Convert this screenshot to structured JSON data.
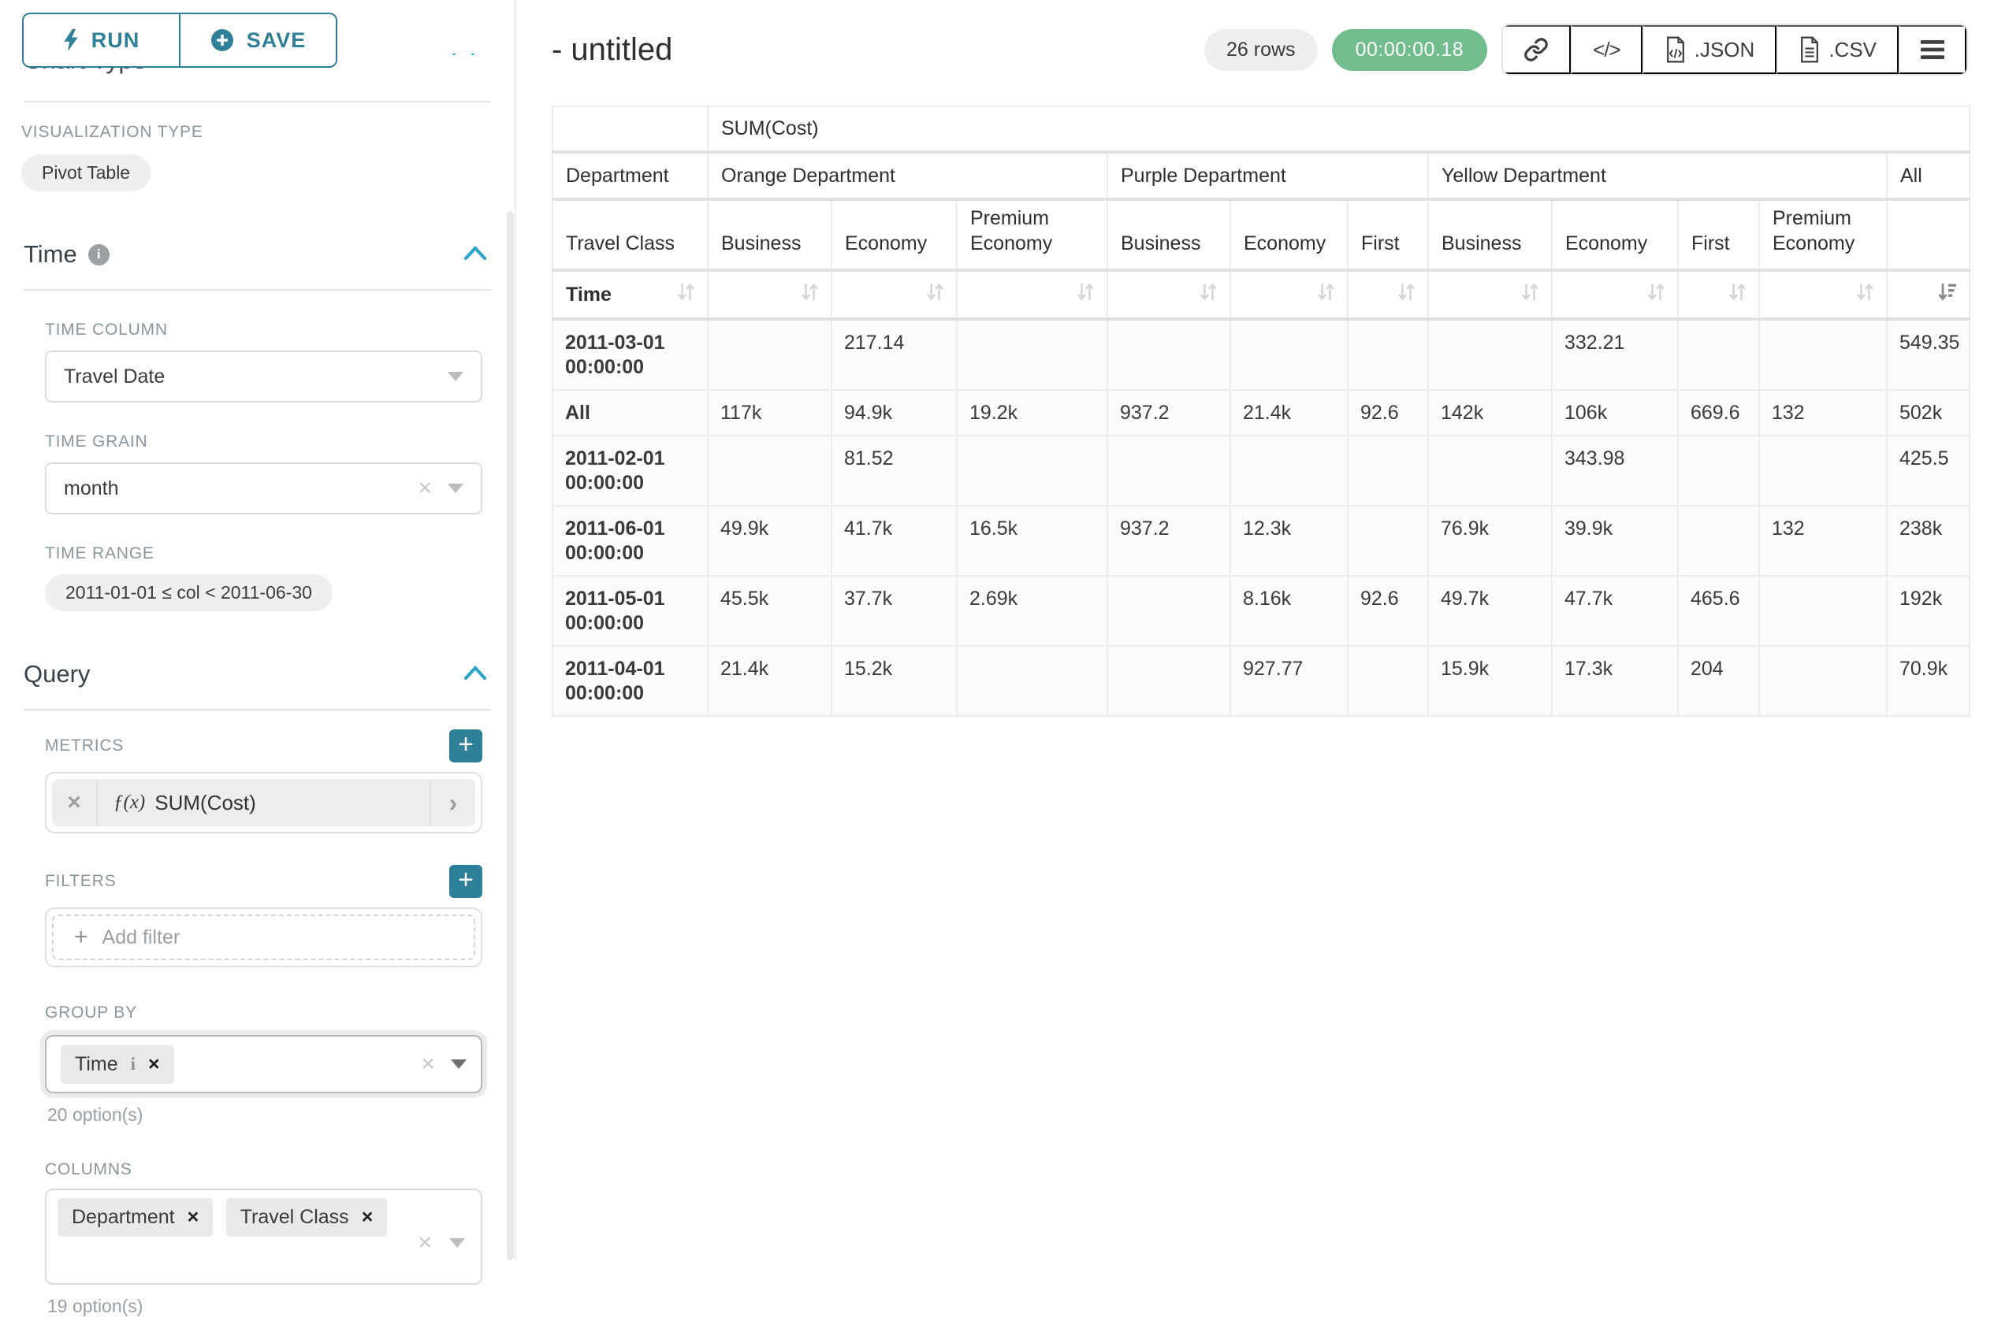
{
  "colors": {
    "accent": "#2e7f98",
    "collapse_chevron": "#2aa3c9",
    "timer_green": "#72bd8e"
  },
  "sidebar": {
    "run_label": "RUN",
    "save_label": "SAVE",
    "chart_type_heading": "Chart Type",
    "viz": {
      "label": "VISUALIZATION TYPE",
      "value": "Pivot Table"
    },
    "time": {
      "title": "Time",
      "column_label": "TIME COLUMN",
      "column_value": "Travel Date",
      "grain_label": "TIME GRAIN",
      "grain_value": "month",
      "range_label": "TIME RANGE",
      "range_value": "2011-01-01 ≤ col < 2011-06-30"
    },
    "query": {
      "title": "Query",
      "metrics_label": "METRICS",
      "metric_fx": "ƒ(x)",
      "metric_value": "SUM(Cost)",
      "filters_label": "FILTERS",
      "add_filter_label": "Add filter",
      "group_by_label": "GROUP BY",
      "group_by_tag": "Time",
      "group_by_helper": "20 option(s)",
      "columns_label": "COLUMNS",
      "columns_tags": [
        "Department",
        "Travel Class"
      ],
      "columns_helper": "19 option(s)"
    }
  },
  "header": {
    "title": "- untitled",
    "rows_badge": "26 rows",
    "timer": "00:00:00.18",
    "export_json_label": ".JSON",
    "export_csv_label": ".CSV"
  },
  "pivot": {
    "type": "table",
    "metric_header": "SUM(Cost)",
    "row2_label": "Department",
    "row3_label": "Travel Class",
    "row4_label": "Time",
    "groups": [
      {
        "label": "Orange Department",
        "classes": [
          "Business",
          "Economy",
          "Premium Economy"
        ]
      },
      {
        "label": "Purple Department",
        "classes": [
          "Business",
          "Economy",
          "First"
        ]
      },
      {
        "label": "Yellow Department",
        "classes": [
          "Business",
          "Economy",
          "First",
          "Premium Economy"
        ]
      },
      {
        "label": "All",
        "classes": [
          ""
        ]
      }
    ],
    "rows": [
      {
        "label": "2011-03-01 00:00:00",
        "cells": [
          "",
          "217.14",
          "",
          "",
          "",
          "",
          "",
          "332.21",
          "",
          "",
          "549.35"
        ]
      },
      {
        "label": "All",
        "cells": [
          "117k",
          "94.9k",
          "19.2k",
          "937.2",
          "21.4k",
          "92.6",
          "142k",
          "106k",
          "669.6",
          "132",
          "502k"
        ]
      },
      {
        "label": "2011-02-01 00:00:00",
        "cells": [
          "",
          "81.52",
          "",
          "",
          "",
          "",
          "",
          "343.98",
          "",
          "",
          "425.5"
        ]
      },
      {
        "label": "2011-06-01 00:00:00",
        "cells": [
          "49.9k",
          "41.7k",
          "16.5k",
          "937.2",
          "12.3k",
          "",
          "76.9k",
          "39.9k",
          "",
          "132",
          "238k"
        ]
      },
      {
        "label": "2011-05-01 00:00:00",
        "cells": [
          "45.5k",
          "37.7k",
          "2.69k",
          "",
          "8.16k",
          "92.6",
          "49.7k",
          "47.7k",
          "465.6",
          "",
          "192k"
        ]
      },
      {
        "label": "2011-04-01 00:00:00",
        "cells": [
          "21.4k",
          "15.2k",
          "",
          "",
          "927.77",
          "",
          "15.9k",
          "17.3k",
          "204",
          "",
          "70.9k"
        ]
      }
    ],
    "sort_desc_column": "All"
  }
}
